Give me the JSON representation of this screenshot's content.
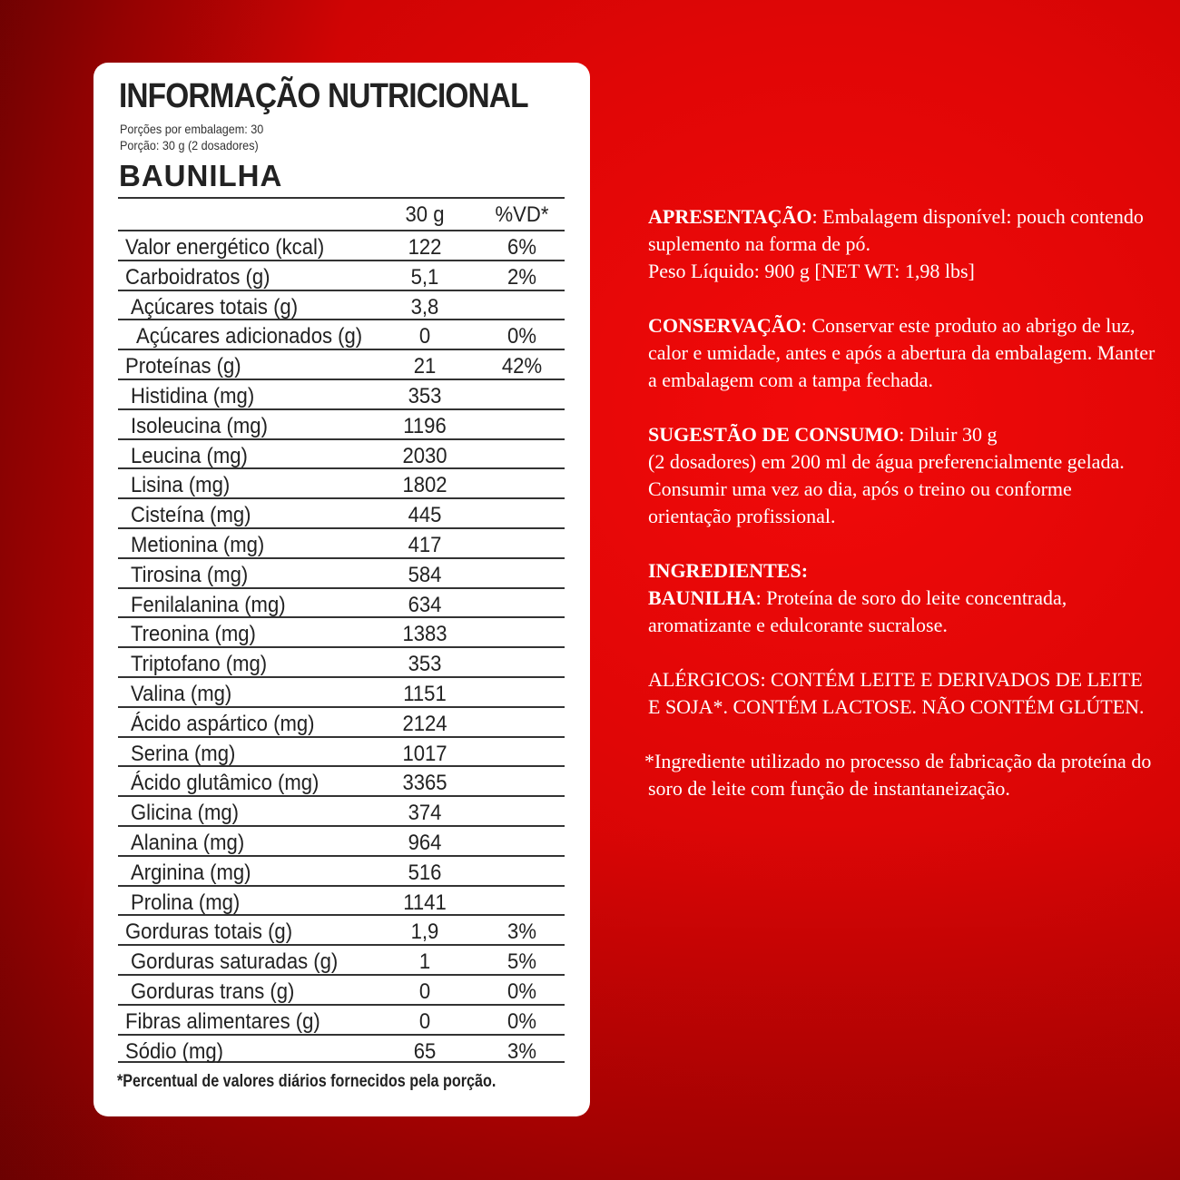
{
  "label": {
    "title": "INFORMAÇÃO NUTRICIONAL",
    "servings_per_package": "Porções por embalagem: 30",
    "serving_size": "Porção: 30 g (2 dosadores)",
    "flavor": "BAUNILHA",
    "col_amount": "30 g",
    "col_dv": "%VD*",
    "rows": [
      {
        "name": "Valor energético (kcal)",
        "amount": "122",
        "dv": "6%",
        "level": 0
      },
      {
        "name": "Carboidratos (g)",
        "amount": "5,1",
        "dv": "2%",
        "level": 0
      },
      {
        "name": "Açúcares totais (g)",
        "amount": "3,8",
        "dv": "",
        "level": 1
      },
      {
        "name": "Açúcares adicionados (g)",
        "amount": "0",
        "dv": "0%",
        "level": 2
      },
      {
        "name": "Proteínas (g)",
        "amount": "21",
        "dv": "42%",
        "level": 0
      },
      {
        "name": "Histidina (mg)",
        "amount": "353",
        "dv": "",
        "level": 1
      },
      {
        "name": "Isoleucina (mg)",
        "amount": "1196",
        "dv": "",
        "level": 1
      },
      {
        "name": "Leucina (mg)",
        "amount": "2030",
        "dv": "",
        "level": 1
      },
      {
        "name": "Lisina (mg)",
        "amount": "1802",
        "dv": "",
        "level": 1
      },
      {
        "name": "Cisteína (mg)",
        "amount": "445",
        "dv": "",
        "level": 1
      },
      {
        "name": "Metionina (mg)",
        "amount": "417",
        "dv": "",
        "level": 1
      },
      {
        "name": "Tirosina (mg)",
        "amount": "584",
        "dv": "",
        "level": 1
      },
      {
        "name": "Fenilalanina (mg)",
        "amount": "634",
        "dv": "",
        "level": 1
      },
      {
        "name": "Treonina (mg)",
        "amount": "1383",
        "dv": "",
        "level": 1
      },
      {
        "name": "Triptofano (mg)",
        "amount": "353",
        "dv": "",
        "level": 1
      },
      {
        "name": "Valina (mg)",
        "amount": "1151",
        "dv": "",
        "level": 1
      },
      {
        "name": "Ácido aspártico (mg)",
        "amount": "2124",
        "dv": "",
        "level": 1
      },
      {
        "name": "Serina (mg)",
        "amount": "1017",
        "dv": "",
        "level": 1
      },
      {
        "name": "Ácido glutâmico (mg)",
        "amount": "3365",
        "dv": "",
        "level": 1
      },
      {
        "name": "Glicina (mg)",
        "amount": "374",
        "dv": "",
        "level": 1
      },
      {
        "name": "Alanina (mg)",
        "amount": "964",
        "dv": "",
        "level": 1
      },
      {
        "name": "Arginina (mg)",
        "amount": "516",
        "dv": "",
        "level": 1
      },
      {
        "name": "Prolina (mg)",
        "amount": "1141",
        "dv": "",
        "level": 1
      },
      {
        "name": "Gorduras totais (g)",
        "amount": "1,9",
        "dv": "3%",
        "level": 0
      },
      {
        "name": "Gorduras saturadas (g)",
        "amount": "1",
        "dv": "5%",
        "level": 1
      },
      {
        "name": "Gorduras trans (g)",
        "amount": "0",
        "dv": "0%",
        "level": 1
      },
      {
        "name": "Fibras alimentares (g)",
        "amount": "0",
        "dv": "0%",
        "level": 0
      },
      {
        "name": "Sódio (mg)",
        "amount": "65",
        "dv": "3%",
        "level": 0
      }
    ],
    "footnote": "*Percentual de valores diários fornecidos pela porção."
  },
  "info": {
    "presentation_head": "APRESENTAÇÃO",
    "presentation_text": ": Embalagem disponível: pouch contendo suplemento na forma de pó.",
    "net_weight": "Peso Líquido: 900 g [NET WT: 1,98 lbs]",
    "conservation_head": "CONSERVAÇÃO",
    "conservation_text": ": Conservar este produto ao abrigo de luz, calor e umidade, antes e após a abertura da embalagem. Manter a embalagem com a tampa fechada.",
    "suggestion_head": "SUGESTÃO DE CONSUMO",
    "suggestion_text": ": Diluir 30 g",
    "suggestion_text2": "(2 dosadores) em 200 ml de água preferencialmente gelada. Consumir uma vez ao dia, após o treino ou conforme orientação profissional.",
    "ingredients_head": "INGREDIENTES:",
    "ingredients_flavor": "BAUNILHA",
    "ingredients_text": ": Proteína de soro do leite concentrada, aromatizante e edulcorante sucralose.",
    "allergens": "ALÉRGICOS: CONTÉM LEITE E DERIVADOS DE LEITE E SOJA*. CONTÉM LACTOSE.  NÃO CONTÉM GLÚTEN.",
    "footnote": "*Ingrediente utilizado no processo de fabricação da proteína do soro de leite com função de instantaneização."
  },
  "colors": {
    "background": "#e00606",
    "card": "#ffffff",
    "text_dark": "#222222",
    "text_light": "#ffffff"
  }
}
